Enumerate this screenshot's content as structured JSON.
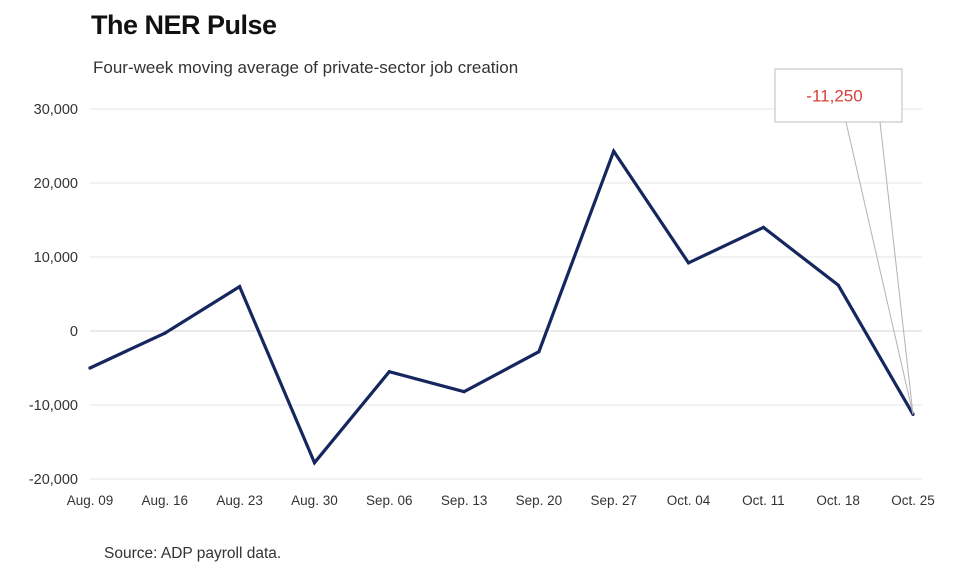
{
  "header": {
    "title": "The NER Pulse",
    "subtitle": "Four-week moving average of private-sector job creation"
  },
  "footer": {
    "source": "Source: ADP payroll data."
  },
  "colors": {
    "line": "#15275e",
    "callout_text": "#d9403a"
  },
  "chart_data": {
    "type": "line",
    "title": "The NER Pulse",
    "subtitle": "Four-week moving average of private-sector job creation",
    "categories": [
      "Aug. 09",
      "Aug. 16",
      "Aug. 23",
      "Aug. 30",
      "Sep. 06",
      "Sep. 13",
      "Sep. 20",
      "Sep. 27",
      "Oct. 04",
      "Oct. 11",
      "Oct. 18",
      "Oct. 25"
    ],
    "series": [
      {
        "values": [
          -5000,
          -300,
          6000,
          -17800,
          -5500,
          -8200,
          -2800,
          24300,
          9200,
          14000,
          6200,
          -11250
        ]
      }
    ],
    "ylim": [
      -20000,
      30000
    ],
    "yticks": [
      30000,
      20000,
      10000,
      0,
      -10000,
      -20000
    ],
    "ytick_labels": [
      "30,000",
      "20,000",
      "10,000",
      "0",
      "-10,000",
      "-20,000"
    ],
    "grid": true,
    "legend": "none",
    "annotations": [
      {
        "category": "Oct. 25",
        "text": "-11,250"
      }
    ]
  }
}
